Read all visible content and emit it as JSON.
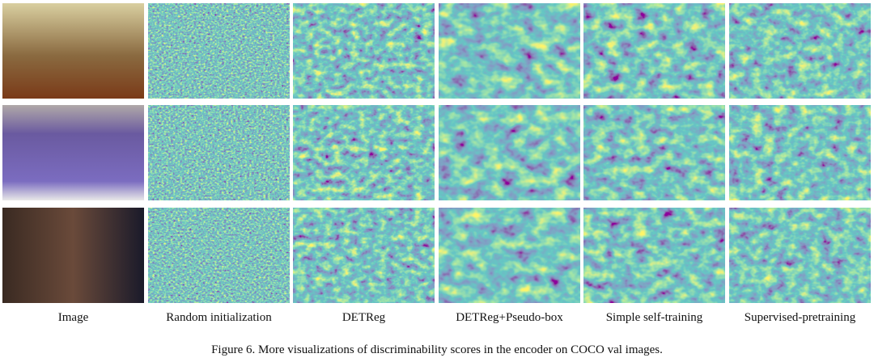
{
  "figure": {
    "columns": [
      "Image",
      "Random initialization",
      "DETReg",
      "DETReg+Pseudo-box",
      "Simple self-training",
      "Supervised-pretraining"
    ],
    "caption": "Figure 6. More visualizations of discriminability scores in the encoder on COCO val images."
  }
}
